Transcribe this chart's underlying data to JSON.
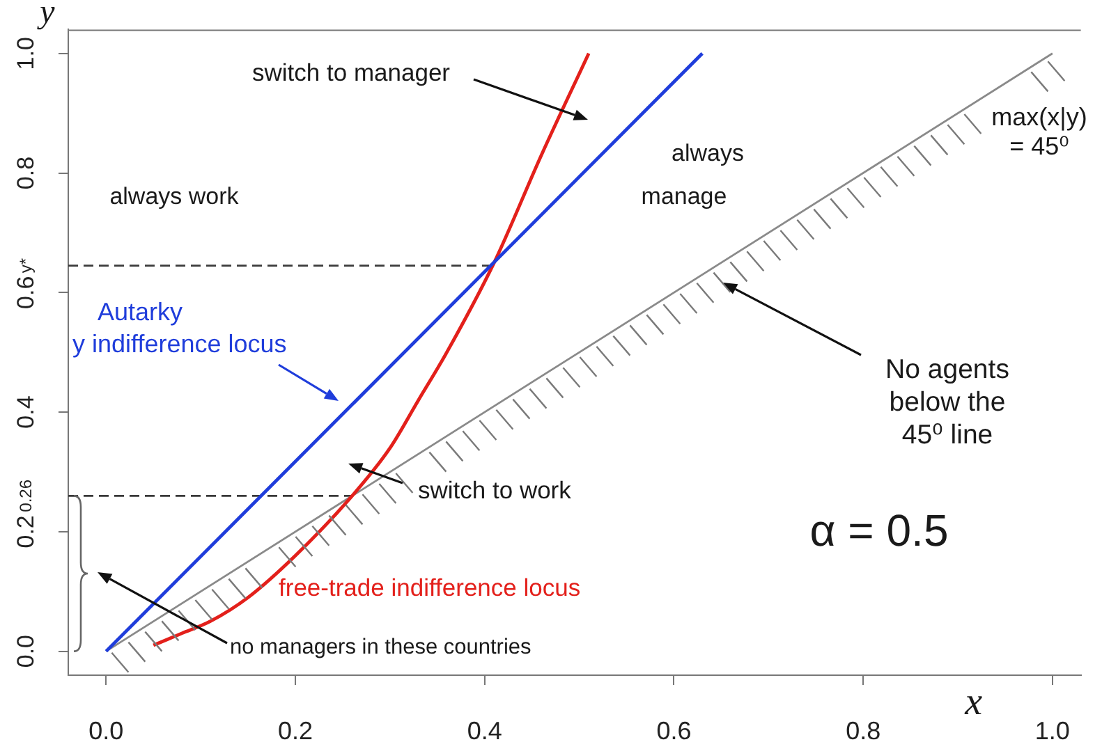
{
  "chart_data": {
    "type": "line",
    "xlabel": "x",
    "ylabel": "y",
    "xlim": [
      -0.04,
      1.03
    ],
    "ylim": [
      -0.04,
      1.04
    ],
    "xticks": [
      {
        "value": 0,
        "label": "0.0"
      },
      0.2,
      0.4,
      0.6,
      0.8,
      {
        "value": 1,
        "label": "1.0"
      }
    ],
    "yticks": [
      {
        "value": 0,
        "label": "0.0"
      },
      0.2,
      0.26,
      0.4,
      0.6,
      {
        "value": 0.645,
        "label": "y*"
      },
      0.8,
      {
        "value": 1,
        "label": "1.0"
      }
    ],
    "series": [
      {
        "name": "Autarky\ny indifference locus",
        "color": "#1f3ddb",
        "x": [
          0,
          0.63
        ],
        "values": [
          0,
          1.0
        ]
      },
      {
        "name": "free-trade indifference locus",
        "color": "#e3201b",
        "x": [
          0.05,
          0.08,
          0.11,
          0.15,
          0.2,
          0.26,
          0.3,
          0.33,
          0.36,
          0.41,
          0.46,
          0.51
        ],
        "values": [
          0.01,
          0.03,
          0.05,
          0.09,
          0.16,
          0.26,
          0.34,
          0.42,
          0.5,
          0.65,
          0.83,
          1.0
        ]
      },
      {
        "color": "#8a8a8a",
        "x": [
          0,
          1
        ],
        "values": [
          0,
          1
        ]
      },
      {
        "color": "#3a3a3a",
        "line_style": "dashed",
        "x": [
          -0.04,
          0.405
        ],
        "values": [
          0.645,
          0.645
        ]
      },
      {
        "color": "#3a3a3a",
        "line_style": "dashed",
        "x": [
          -0.04,
          0.26
        ],
        "values": [
          0.26,
          0.26
        ]
      }
    ],
    "annotations": [
      "switch to manager",
      "always",
      "always work",
      "manage",
      "max(x|y)\n= 45⁰",
      "No agents\nbelow the\n45⁰ line",
      "switch to work",
      "α = 0.5",
      "no managers in these countries"
    ]
  }
}
